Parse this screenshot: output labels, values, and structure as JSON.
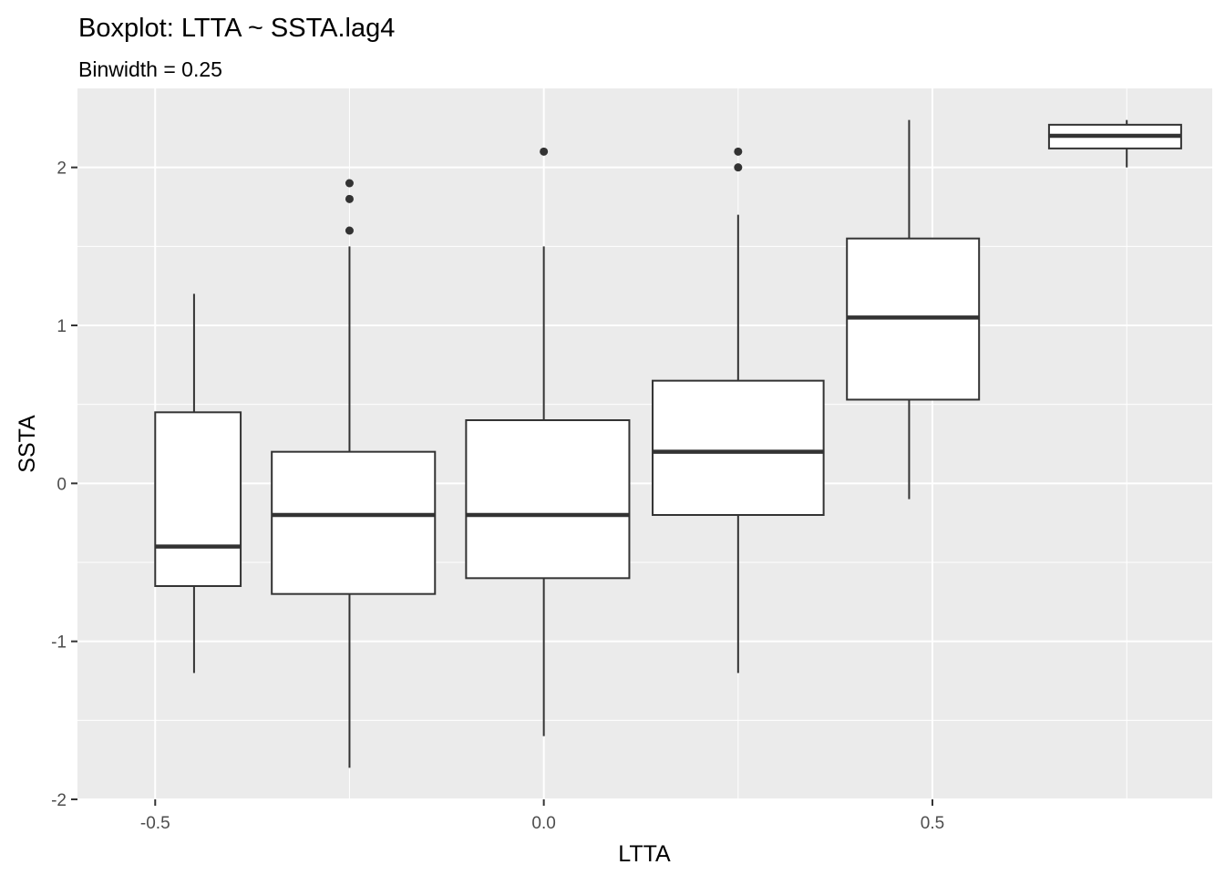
{
  "chart_data": {
    "type": "boxplot",
    "title": "Boxplot: LTTA ~ SSTA.lag4",
    "subtitle": "Binwidth = 0.25",
    "xlabel": "LTTA",
    "ylabel": "SSTA",
    "xlim": [
      -0.6,
      0.86
    ],
    "ylim": [
      -2,
      2.5
    ],
    "x_ticks": [
      -0.5,
      0.0,
      0.5
    ],
    "x_tick_labels": [
      "-0.5",
      "0.0",
      "0.5"
    ],
    "y_ticks": [
      -2,
      -1,
      0,
      1,
      2
    ],
    "y_tick_labels": [
      "-2",
      "-1",
      "0",
      "1",
      "2"
    ],
    "grid": true,
    "legend": "none",
    "boxes": [
      {
        "x_left": -0.5,
        "x_right": -0.39,
        "whisker_x": -0.45,
        "ymin": -1.2,
        "q1": -0.65,
        "median": -0.4,
        "q3": 0.45,
        "ymax": 1.2,
        "outliers": []
      },
      {
        "x_left": -0.35,
        "x_right": -0.14,
        "whisker_x": -0.25,
        "ymin": -1.8,
        "q1": -0.7,
        "median": -0.2,
        "q3": 0.2,
        "ymax": 1.5,
        "outliers": [
          1.6,
          1.8,
          1.9
        ]
      },
      {
        "x_left": -0.1,
        "x_right": 0.11,
        "whisker_x": 0.0,
        "ymin": -1.6,
        "q1": -0.6,
        "median": -0.2,
        "q3": 0.4,
        "ymax": 1.5,
        "outliers": [
          2.1
        ]
      },
      {
        "x_left": 0.14,
        "x_right": 0.36,
        "whisker_x": 0.25,
        "ymin": -1.2,
        "q1": -0.2,
        "median": 0.2,
        "q3": 0.65,
        "ymax": 1.7,
        "outliers": [
          2.0,
          2.1
        ]
      },
      {
        "x_left": 0.39,
        "x_right": 0.56,
        "whisker_x": 0.47,
        "ymin": -0.1,
        "q1": 0.53,
        "median": 1.05,
        "q3": 1.55,
        "ymax": 2.3,
        "outliers": []
      },
      {
        "x_left": 0.65,
        "x_right": 0.82,
        "whisker_x": 0.75,
        "ymin": 2.0,
        "q1": 2.12,
        "median": 2.2,
        "q3": 2.27,
        "ymax": 2.3,
        "outliers": []
      }
    ],
    "colors": {
      "panel_background": "#ebebeb",
      "grid_major": "#ffffff",
      "box_fill": "#ffffff",
      "box_stroke": "#333333",
      "tick_text": "#4d4d4d",
      "text": "#000000"
    }
  }
}
